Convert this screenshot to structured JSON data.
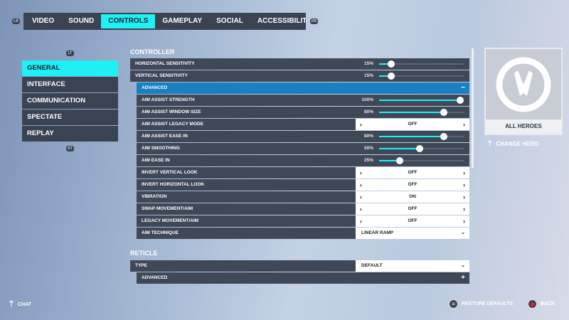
{
  "tabs": {
    "lb": "LB",
    "rb": "RB",
    "items": [
      "VIDEO",
      "SOUND",
      "CONTROLS",
      "GAMEPLAY",
      "SOCIAL",
      "ACCESSIBILITY"
    ],
    "active": "CONTROLS"
  },
  "sidebar": {
    "lt": "LT",
    "rt": "RT",
    "items": [
      "GENERAL",
      "INTERFACE",
      "COMMUNICATION",
      "SPECTATE",
      "REPLAY"
    ],
    "active": "GENERAL"
  },
  "controller": {
    "title": "CONTROLLER",
    "rows": [
      {
        "label": "HORIZONTAL SENSITIVITY",
        "type": "slider",
        "value": "15%",
        "level": 0.15,
        "indent": false
      },
      {
        "label": "VERTICAL SENSITIVITY",
        "type": "slider",
        "value": "15%",
        "level": 0.15,
        "indent": false
      },
      {
        "label": "ADVANCED",
        "type": "header",
        "toggle": "−",
        "indent": true
      },
      {
        "label": "AIM ASSIST STRENGTH",
        "type": "slider",
        "value": "100%",
        "level": 1.0,
        "indent": true
      },
      {
        "label": "AIM ASSIST WINDOW SIZE",
        "type": "slider",
        "value": "80%",
        "level": 0.8,
        "indent": true
      },
      {
        "label": "AIM ASSIST LEGACY MODE",
        "type": "toggle",
        "value": "OFF",
        "indent": true
      },
      {
        "label": "AIM ASSIST EASE IN",
        "type": "slider",
        "value": "80%",
        "level": 0.8,
        "indent": true
      },
      {
        "label": "AIM SMOOTHING",
        "type": "slider",
        "value": "50%",
        "level": 0.5,
        "indent": true
      },
      {
        "label": "AIM EASE IN",
        "type": "slider",
        "value": "25%",
        "level": 0.25,
        "indent": true
      },
      {
        "label": "INVERT VERTICAL LOOK",
        "type": "toggle",
        "value": "OFF",
        "indent": true
      },
      {
        "label": "INVERT HORIZONTAL LOOK",
        "type": "toggle",
        "value": "OFF",
        "indent": true
      },
      {
        "label": "VIBRATION",
        "type": "toggle",
        "value": "ON",
        "indent": true
      },
      {
        "label": "SWAP MOVEMENT/AIM",
        "type": "toggle",
        "value": "OFF",
        "indent": true
      },
      {
        "label": "LEGACY MOVEMENT/AIM",
        "type": "toggle",
        "value": "OFF",
        "indent": true
      },
      {
        "label": "AIM TECHNIQUE",
        "type": "dropdown",
        "value": "LINEAR RAMP",
        "indent": true
      }
    ]
  },
  "reticle": {
    "title": "RETICLE",
    "rows": [
      {
        "label": "TYPE",
        "type": "dropdown",
        "value": "DEFAULT",
        "indent": false
      },
      {
        "label": "ADVANCED",
        "type": "expand",
        "toggle": "+",
        "indent": true
      }
    ]
  },
  "hero": {
    "name": "ALL HEROES",
    "change": "CHANGE HERO"
  },
  "footer": {
    "chat": "CHAT",
    "restore": "RESTORE DEFAULTS",
    "back": "BACK"
  },
  "colors": {
    "accent": "#1ef0f5",
    "panel": "#3f4857",
    "advanced": "#1a7fc0"
  }
}
